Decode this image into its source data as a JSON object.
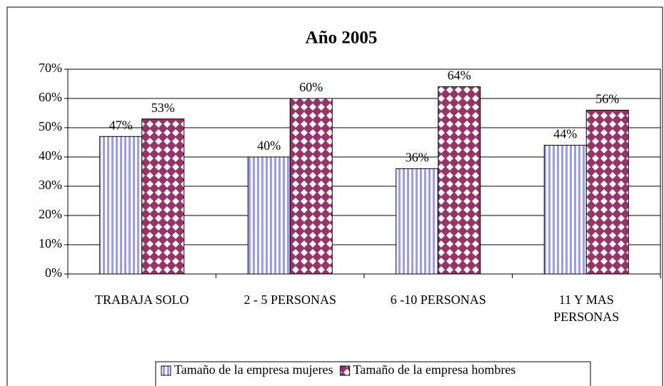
{
  "chart_data": {
    "type": "bar",
    "title": "Año 2005",
    "categories": [
      "TRABAJA SOLO",
      "2 - 5 PERSONAS",
      "6 -10 PERSONAS",
      "11 Y MAS PERSONAS"
    ],
    "series": [
      {
        "name": "Tamaño de la empresa mujeres",
        "color": "#9999ff",
        "values": [
          47,
          40,
          36,
          44
        ],
        "value_labels": [
          "47%",
          "40%",
          "36%",
          "44%"
        ]
      },
      {
        "name": "Tamaño de la empresa hombres",
        "color": "#993366",
        "values": [
          53,
          60,
          64,
          56
        ],
        "value_labels": [
          "53%",
          "60%",
          "64%",
          "56%"
        ]
      }
    ],
    "ylim": [
      0,
      70
    ],
    "yticks": [
      {
        "value": 0,
        "label": "0%"
      },
      {
        "value": 10,
        "label": "10%"
      },
      {
        "value": 20,
        "label": "20%"
      },
      {
        "value": 30,
        "label": "30%"
      },
      {
        "value": 40,
        "label": "40%"
      },
      {
        "value": 50,
        "label": "50%"
      },
      {
        "value": 60,
        "label": "60%"
      },
      {
        "value": 70,
        "label": "70%"
      }
    ],
    "grid": true,
    "legend": "bottom"
  }
}
